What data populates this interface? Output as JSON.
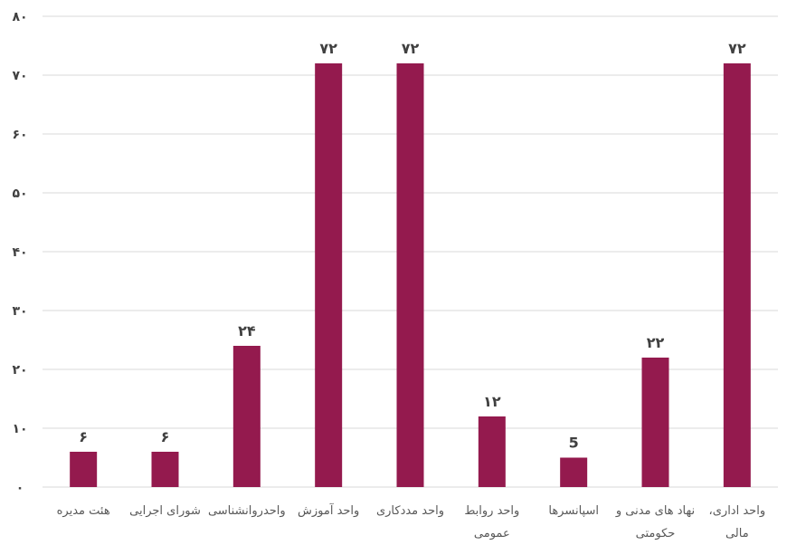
{
  "chart_data": {
    "type": "bar",
    "categories": [
      [
        "هئت مدیره"
      ],
      [
        "شورای اجرایی"
      ],
      [
        "واحدروانشناسی"
      ],
      [
        "واحد آموزش"
      ],
      [
        "واحد مددکاری"
      ],
      [
        "واحد روابط",
        "عمومی"
      ],
      [
        "اسپانسرها"
      ],
      [
        "نهاد های مدنی و",
        "حکومتی"
      ],
      [
        "واحد اداری،",
        "مالی"
      ]
    ],
    "values": [
      6,
      6,
      24,
      72,
      72,
      12,
      5,
      22,
      72
    ],
    "data_labels": [
      "۶",
      "۶",
      "۲۴",
      "۷۲",
      "۷۲",
      "۱۲",
      "5",
      "۲۲",
      "۷۲"
    ],
    "ytick_labels": [
      "۰",
      "۱۰",
      "۲۰",
      "۳۰",
      "۴۰",
      "۵۰",
      "۶۰",
      "۷۰",
      "۸۰"
    ],
    "ylim": [
      0,
      80
    ],
    "ytick_step": 10,
    "grid": true,
    "bar_color": "#941a4e",
    "title": "",
    "xlabel": "",
    "ylabel": ""
  }
}
